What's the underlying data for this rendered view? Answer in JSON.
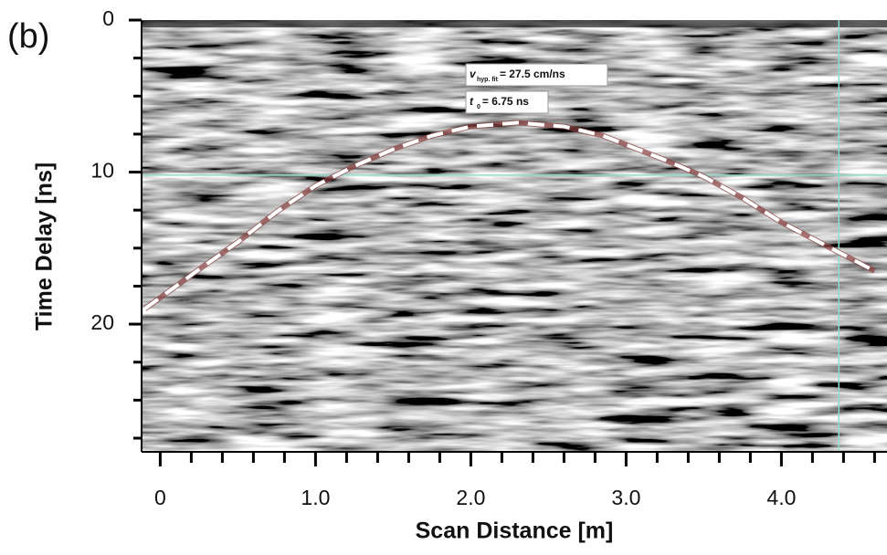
{
  "chart_data": {
    "type": "line",
    "panel_label": "(b)",
    "xlabel": "Scan Distance [m]",
    "ylabel": "Time Delay [ns]",
    "xlim": [
      -0.12,
      4.68
    ],
    "ylim": [
      0,
      28.4
    ],
    "y_inverted": true,
    "xticks": [
      0,
      {
        "value": 1,
        "label": "1.0"
      },
      {
        "value": 2,
        "label": "2.0"
      },
      {
        "value": 3,
        "label": "3.0"
      },
      {
        "value": 4,
        "label": "4.0"
      }
    ],
    "xminorticks": [
      0.2,
      0.4,
      0.6,
      0.8,
      1.2,
      1.4,
      1.6,
      1.8,
      2.2,
      2.4,
      2.6,
      2.8,
      3.2,
      3.4,
      3.6,
      3.8,
      4.2,
      4.4,
      4.6
    ],
    "yticks": [
      0,
      10,
      20
    ],
    "yminorticks": [
      2.5,
      5,
      7.5,
      12.5,
      15,
      17.5,
      22.5,
      25,
      27.5
    ],
    "series": [
      {
        "color": "#ffffff",
        "x": [
          -0.1,
          0.25,
          0.5,
          0.75,
          1.0,
          1.25,
          1.5,
          1.75,
          2.0,
          2.3,
          2.6,
          2.85,
          3.0,
          3.25,
          3.5,
          3.75,
          4.0,
          4.3,
          4.6
        ],
        "values": [
          19,
          16.4,
          14.6,
          12.6,
          10.9,
          9.6,
          8.5,
          7.6,
          7.0,
          6.75,
          7.0,
          7.6,
          8.2,
          9.2,
          10.3,
          11.7,
          13.3,
          14.9,
          16.5
        ]
      }
    ],
    "crosshair": {
      "x": 4.37,
      "y": 10.2,
      "color": "#8fdccc"
    },
    "annotations": [
      {
        "symbol": "v",
        "subscript": "hyp. fit",
        "text": "= 27.5 cm/ns"
      },
      {
        "symbol": "t",
        "subscript": "0",
        "text": "= 6.75 ns"
      }
    ]
  }
}
